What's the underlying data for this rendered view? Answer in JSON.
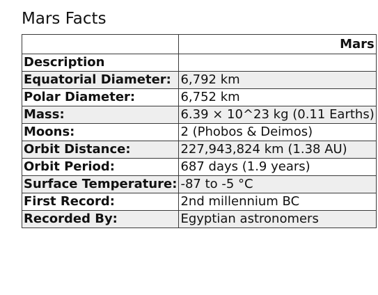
{
  "page": {
    "title": "Mars Facts"
  },
  "table": {
    "column_header": "Mars",
    "section_label": "Description",
    "rows": [
      {
        "label": "Equatorial Diameter:",
        "value": "6,792 km"
      },
      {
        "label": "Polar Diameter:",
        "value": "6,752 km"
      },
      {
        "label": "Mass:",
        "value": "6.39 × 10^23 kg (0.11 Earths)"
      },
      {
        "label": "Moons:",
        "value": "2 (Phobos & Deimos)"
      },
      {
        "label": "Orbit Distance:",
        "value": "227,943,824 km (1.38 AU)"
      },
      {
        "label": "Orbit Period:",
        "value": "687 days (1.9 years)"
      },
      {
        "label": "Surface Temperature:",
        "value": "-87 to -5 °C"
      },
      {
        "label": "First Record:",
        "value": "2nd millennium BC"
      },
      {
        "label": "Recorded By:",
        "value": "Egyptian astronomers"
      }
    ]
  }
}
